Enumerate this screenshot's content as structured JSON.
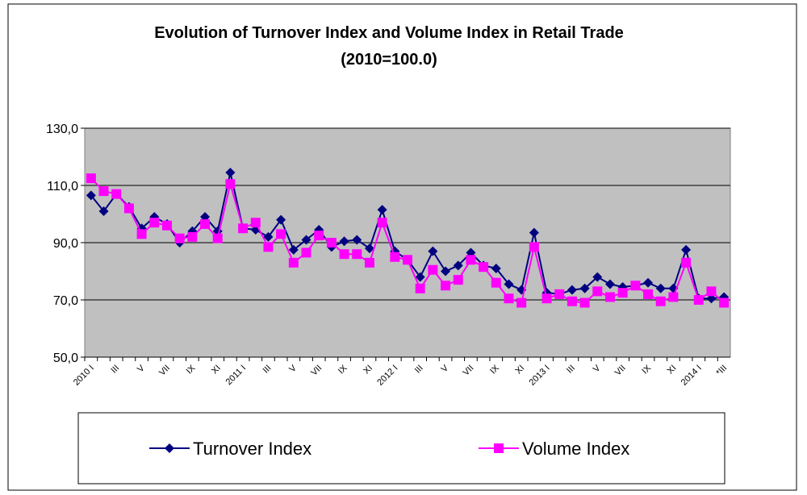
{
  "chart_data": {
    "type": "line",
    "title": "Evolution of Turnover Index and Volume Index in Retail Trade",
    "subtitle": "(2010=100.0)",
    "categories": [
      "2010 I",
      null,
      "III",
      null,
      "V",
      null,
      "VII",
      null,
      "IX",
      null,
      "XI",
      null,
      "2011 I",
      null,
      "III",
      null,
      "V",
      null,
      "VII",
      null,
      "IX",
      null,
      "XI",
      null,
      "2012 I",
      null,
      "III",
      null,
      "V",
      null,
      "VII",
      null,
      "IX",
      null,
      "XI",
      null,
      "2013 I",
      null,
      "III",
      null,
      "V",
      null,
      "VII",
      null,
      "IX",
      null,
      "XI",
      null,
      "2014 I",
      null,
      "*III"
    ],
    "series": [
      {
        "name": "Turnover Index",
        "color": "#000080",
        "marker": "diamond",
        "values": [
          106.5,
          101,
          107,
          102.5,
          95,
          99,
          96.5,
          90,
          94,
          99,
          94,
          114.5,
          95,
          94.5,
          92,
          98,
          87.5,
          91,
          94.5,
          88.5,
          90.5,
          91,
          88,
          101.5,
          87,
          84,
          78,
          87,
          80,
          82,
          86.5,
          82,
          81,
          75.5,
          73.5,
          93.5,
          72.5,
          72,
          73.5,
          74,
          78,
          75.5,
          74.5,
          75,
          76,
          74,
          74,
          87.5,
          70.5,
          70.5,
          71
        ]
      },
      {
        "name": "Volume Index",
        "color": "#ff00ff",
        "marker": "square",
        "values": [
          112.5,
          108,
          107,
          102,
          93,
          97,
          96,
          91.5,
          92,
          96.5,
          91.5,
          110.5,
          95,
          97,
          88.5,
          93,
          83,
          86.5,
          92.5,
          90,
          86,
          86,
          83,
          97,
          85,
          84,
          74,
          80.5,
          75,
          77,
          84,
          81.5,
          76,
          70.5,
          69,
          88.5,
          70.5,
          72,
          69.5,
          69,
          73,
          71,
          72.5,
          75,
          72,
          69.5,
          71,
          83,
          70,
          73,
          69
        ]
      }
    ],
    "ylim": [
      50,
      130
    ],
    "yticks": [
      {
        "value": 50,
        "label": "50,0"
      },
      {
        "value": 70,
        "label": "70,0"
      },
      {
        "value": 90,
        "label": "90,0"
      },
      {
        "value": 110,
        "label": "110,0"
      },
      {
        "value": 130,
        "label": "130,0"
      }
    ],
    "grid": true,
    "legend": "bottom"
  }
}
